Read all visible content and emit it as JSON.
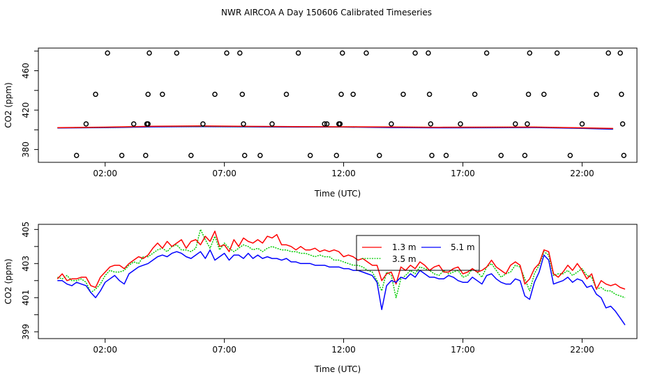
{
  "figure_title": "NWR AIRCOA A  Day 150606  Calibrated Timeseries",
  "colors": {
    "red": "#ff0000",
    "green": "#00cc00",
    "blue": "#0000ff",
    "axis": "#000000"
  },
  "chart_data": [
    {
      "type": "scatter",
      "name": "top-panel",
      "ylabel": "CO2 (ppm)",
      "xlabel": "Time (UTC)",
      "xlim": [
        -0.8,
        24.3
      ],
      "ylim": [
        367,
        483
      ],
      "x_ticks": [
        2,
        7,
        12,
        17,
        22
      ],
      "x_tick_labels": [
        "02:00",
        "07:00",
        "12:00",
        "17:00",
        "22:00"
      ],
      "y_ticks": [
        380,
        420,
        460
      ],
      "y_tick_labels": [
        "380",
        "420",
        "460"
      ],
      "series": [
        {
          "name": "5.1 m",
          "color": "#0000ff",
          "x": [
            0.0,
            2.0,
            4.0,
            6.0,
            8.0,
            10.0,
            12.0,
            14.0,
            16.0,
            18.0,
            20.0,
            22.0,
            23.3
          ],
          "values": [
            401.9,
            402.2,
            403.0,
            403.3,
            403.0,
            402.8,
            402.8,
            402.3,
            402.0,
            402.1,
            402.3,
            401.5,
            400.6
          ]
        },
        {
          "name": "3.5 m",
          "color": "#00cc00",
          "x": [
            0.0,
            2.0,
            4.0,
            6.0,
            8.0,
            10.0,
            12.0,
            14.0,
            16.0,
            18.0,
            20.0,
            22.0,
            23.3
          ],
          "values": [
            402.1,
            402.5,
            403.5,
            403.6,
            403.3,
            403.1,
            403.0,
            402.8,
            402.5,
            402.6,
            402.7,
            401.9,
            401.2
          ]
        },
        {
          "name": "1.3 m",
          "color": "#ff0000",
          "x": [
            0.0,
            2.0,
            4.0,
            6.0,
            8.0,
            10.0,
            12.0,
            14.0,
            16.0,
            18.0,
            20.0,
            22.0,
            23.3
          ],
          "values": [
            402.2,
            402.7,
            403.6,
            403.9,
            403.5,
            403.3,
            403.1,
            402.9,
            402.6,
            402.7,
            402.8,
            402.0,
            401.4
          ]
        }
      ],
      "points": [
        {
          "x": 0.8,
          "y": 374
        },
        {
          "x": 1.2,
          "y": 406
        },
        {
          "x": 1.6,
          "y": 436
        },
        {
          "x": 2.1,
          "y": 478
        },
        {
          "x": 2.7,
          "y": 374
        },
        {
          "x": 3.2,
          "y": 406
        },
        {
          "x": 3.7,
          "y": 374
        },
        {
          "x": 3.75,
          "y": 406
        },
        {
          "x": 3.8,
          "y": 406
        },
        {
          "x": 3.8,
          "y": 436
        },
        {
          "x": 3.85,
          "y": 478
        },
        {
          "x": 4.4,
          "y": 436
        },
        {
          "x": 5.0,
          "y": 478
        },
        {
          "x": 5.6,
          "y": 374
        },
        {
          "x": 6.1,
          "y": 406
        },
        {
          "x": 6.6,
          "y": 436
        },
        {
          "x": 7.1,
          "y": 478
        },
        {
          "x": 7.65,
          "y": 478
        },
        {
          "x": 7.75,
          "y": 436
        },
        {
          "x": 7.8,
          "y": 406
        },
        {
          "x": 7.85,
          "y": 374
        },
        {
          "x": 8.5,
          "y": 374
        },
        {
          "x": 9.0,
          "y": 406
        },
        {
          "x": 9.6,
          "y": 436
        },
        {
          "x": 10.1,
          "y": 478
        },
        {
          "x": 10.6,
          "y": 374
        },
        {
          "x": 11.2,
          "y": 406
        },
        {
          "x": 11.3,
          "y": 406
        },
        {
          "x": 11.7,
          "y": 374
        },
        {
          "x": 11.8,
          "y": 406
        },
        {
          "x": 11.85,
          "y": 406
        },
        {
          "x": 11.9,
          "y": 436
        },
        {
          "x": 11.95,
          "y": 478
        },
        {
          "x": 12.4,
          "y": 436
        },
        {
          "x": 12.95,
          "y": 478
        },
        {
          "x": 13.5,
          "y": 374
        },
        {
          "x": 14.0,
          "y": 406
        },
        {
          "x": 14.5,
          "y": 436
        },
        {
          "x": 15.0,
          "y": 478
        },
        {
          "x": 15.55,
          "y": 478
        },
        {
          "x": 15.6,
          "y": 436
        },
        {
          "x": 15.65,
          "y": 406
        },
        {
          "x": 15.7,
          "y": 374
        },
        {
          "x": 16.3,
          "y": 374
        },
        {
          "x": 16.9,
          "y": 406
        },
        {
          "x": 17.5,
          "y": 436
        },
        {
          "x": 18.0,
          "y": 478
        },
        {
          "x": 18.6,
          "y": 374
        },
        {
          "x": 19.2,
          "y": 406
        },
        {
          "x": 19.6,
          "y": 374
        },
        {
          "x": 19.7,
          "y": 406
        },
        {
          "x": 19.75,
          "y": 436
        },
        {
          "x": 19.8,
          "y": 478
        },
        {
          "x": 20.4,
          "y": 436
        },
        {
          "x": 20.95,
          "y": 478
        },
        {
          "x": 21.5,
          "y": 374
        },
        {
          "x": 22.0,
          "y": 406
        },
        {
          "x": 22.6,
          "y": 436
        },
        {
          "x": 23.1,
          "y": 478
        },
        {
          "x": 23.6,
          "y": 478
        },
        {
          "x": 23.65,
          "y": 436
        },
        {
          "x": 23.7,
          "y": 406
        },
        {
          "x": 23.75,
          "y": 374
        }
      ]
    },
    {
      "type": "line",
      "name": "bottom-panel",
      "ylabel": "CO2 (ppm)",
      "xlabel": "Time (UTC)",
      "xlim": [
        -0.8,
        24.3
      ],
      "ylim": [
        398.6,
        405.3
      ],
      "x_ticks": [
        2,
        7,
        12,
        17,
        22
      ],
      "x_tick_labels": [
        "02:00",
        "07:00",
        "12:00",
        "17:00",
        "22:00"
      ],
      "y_ticks": [
        399,
        401,
        403,
        405
      ],
      "y_tick_labels": [
        "399",
        "401",
        "403",
        "405"
      ],
      "legend": {
        "position": "top-right",
        "entries": [
          "1.3 m",
          "5.1 m",
          "3.5 m"
        ]
      },
      "x": [
        0.0,
        0.2,
        0.4,
        0.6,
        0.8,
        1.0,
        1.2,
        1.4,
        1.6,
        1.8,
        2.0,
        2.2,
        2.4,
        2.6,
        2.8,
        3.0,
        3.2,
        3.4,
        3.6,
        3.8,
        4.0,
        4.2,
        4.4,
        4.6,
        4.8,
        5.0,
        5.2,
        5.4,
        5.6,
        5.8,
        6.0,
        6.2,
        6.4,
        6.6,
        6.8,
        7.0,
        7.2,
        7.4,
        7.6,
        7.8,
        8.0,
        8.2,
        8.4,
        8.6,
        8.8,
        9.0,
        9.2,
        9.4,
        9.6,
        9.8,
        10.0,
        10.2,
        10.4,
        10.6,
        10.8,
        11.0,
        11.2,
        11.4,
        11.6,
        11.8,
        12.0,
        12.2,
        12.4,
        12.6,
        12.8,
        13.0,
        13.2,
        13.4,
        13.6,
        13.8,
        14.0,
        14.2,
        14.4,
        14.6,
        14.8,
        15.0,
        15.2,
        15.4,
        15.6,
        15.8,
        16.0,
        16.2,
        16.4,
        16.6,
        16.8,
        17.0,
        17.2,
        17.4,
        17.6,
        17.8,
        18.0,
        18.2,
        18.4,
        18.6,
        18.8,
        19.0,
        19.2,
        19.4,
        19.6,
        19.8,
        20.0,
        20.2,
        20.4,
        20.6,
        20.8,
        21.0,
        21.2,
        21.4,
        21.6,
        21.8,
        22.0,
        22.2,
        22.4,
        22.6,
        22.8,
        23.0,
        23.2,
        23.4,
        23.6,
        23.8
      ],
      "series": [
        {
          "name": "3.5 m",
          "color": "#00cc00",
          "values": [
            402.2,
            402.1,
            402.3,
            402.0,
            402.0,
            402.1,
            401.9,
            401.3,
            401.5,
            401.8,
            402.3,
            402.6,
            402.5,
            402.5,
            402.6,
            402.9,
            403.1,
            403.0,
            403.4,
            403.4,
            403.6,
            403.8,
            403.9,
            403.7,
            404.0,
            404.1,
            403.8,
            403.8,
            403.7,
            403.9,
            405.0,
            404.4,
            403.9,
            404.6,
            403.8,
            404.2,
            403.9,
            403.7,
            403.9,
            404.1,
            404.0,
            403.8,
            403.9,
            403.7,
            403.9,
            404.0,
            403.9,
            403.8,
            403.8,
            403.7,
            403.7,
            403.6,
            403.6,
            403.5,
            403.4,
            403.5,
            403.4,
            403.4,
            403.2,
            403.2,
            403.1,
            403.0,
            402.9,
            402.9,
            402.8,
            402.6,
            402.5,
            402.0,
            401.4,
            402.5,
            402.3,
            401.0,
            402.1,
            402.3,
            402.6,
            402.4,
            402.8,
            402.7,
            402.6,
            402.4,
            402.3,
            402.6,
            402.4,
            402.5,
            402.6,
            402.2,
            402.3,
            402.7,
            402.5,
            402.2,
            402.8,
            403.0,
            402.6,
            402.2,
            402.4,
            402.5,
            402.9,
            402.8,
            402.1,
            401.4,
            402.4,
            402.9,
            403.7,
            403.5,
            402.3,
            402.4,
            402.4,
            402.6,
            402.3,
            402.5,
            402.7,
            402.3,
            402.2,
            401.5,
            401.6,
            401.4,
            401.4,
            401.2,
            401.1,
            401.0
          ]
        },
        {
          "name": "1.3 m",
          "color": "#ff0000",
          "values": [
            402.1,
            402.4,
            402.0,
            402.1,
            402.1,
            402.2,
            402.2,
            401.7,
            401.6,
            402.2,
            402.5,
            402.8,
            402.9,
            402.9,
            402.7,
            403.0,
            403.2,
            403.4,
            403.3,
            403.5,
            403.9,
            404.2,
            403.9,
            404.3,
            404.0,
            404.2,
            404.4,
            403.9,
            404.3,
            404.4,
            404.1,
            404.6,
            404.3,
            404.9,
            404.0,
            404.1,
            403.7,
            404.4,
            404.0,
            404.5,
            404.3,
            404.2,
            404.4,
            404.2,
            404.6,
            404.5,
            404.7,
            404.1,
            404.1,
            404.0,
            403.8,
            404.0,
            403.8,
            403.8,
            403.9,
            403.7,
            403.8,
            403.7,
            403.8,
            403.7,
            403.4,
            403.5,
            403.4,
            403.2,
            403.3,
            403.1,
            402.9,
            402.9,
            402.0,
            402.4,
            402.5,
            401.8,
            402.8,
            402.6,
            402.9,
            402.7,
            403.1,
            402.9,
            402.6,
            402.8,
            402.9,
            402.5,
            402.5,
            402.7,
            402.8,
            402.4,
            402.5,
            402.7,
            402.5,
            402.6,
            402.8,
            403.2,
            402.8,
            402.6,
            402.4,
            402.9,
            403.1,
            402.9,
            401.8,
            402.1,
            402.7,
            403.0,
            403.8,
            403.7,
            402.4,
            402.2,
            402.5,
            402.9,
            402.6,
            403.0,
            402.6,
            402.1,
            402.4,
            401.5,
            402.0,
            401.8,
            401.7,
            401.8,
            401.6,
            401.5
          ]
        },
        {
          "name": "5.1 m",
          "color": "#0000ff",
          "values": [
            402.0,
            402.0,
            401.8,
            401.7,
            401.9,
            401.8,
            401.7,
            401.3,
            401.0,
            401.4,
            401.9,
            402.1,
            402.3,
            402.0,
            401.8,
            402.4,
            402.6,
            402.8,
            402.9,
            403.0,
            403.2,
            403.4,
            403.5,
            403.4,
            403.6,
            403.7,
            403.6,
            403.4,
            403.3,
            403.5,
            403.7,
            403.3,
            403.8,
            403.2,
            403.4,
            403.6,
            403.2,
            403.5,
            403.5,
            403.3,
            403.6,
            403.3,
            403.5,
            403.3,
            403.4,
            403.3,
            403.3,
            403.2,
            403.3,
            403.1,
            403.1,
            403.0,
            403.0,
            403.0,
            402.9,
            402.9,
            402.9,
            402.8,
            402.8,
            402.8,
            402.7,
            402.7,
            402.6,
            402.6,
            402.5,
            402.4,
            402.3,
            401.9,
            400.3,
            401.7,
            402.0,
            401.9,
            402.2,
            402.1,
            402.4,
            402.2,
            402.6,
            402.4,
            402.2,
            402.2,
            402.1,
            402.1,
            402.3,
            402.2,
            402.0,
            401.9,
            401.9,
            402.2,
            402.0,
            401.8,
            402.3,
            402.4,
            402.1,
            401.9,
            401.8,
            401.8,
            402.1,
            402.0,
            401.1,
            400.9,
            401.9,
            402.5,
            403.5,
            403.2,
            401.8,
            401.9,
            402.0,
            402.2,
            401.9,
            402.1,
            402.0,
            401.6,
            401.7,
            401.2,
            401.0,
            400.4,
            400.5,
            400.2,
            399.8,
            399.4
          ]
        }
      ]
    }
  ]
}
